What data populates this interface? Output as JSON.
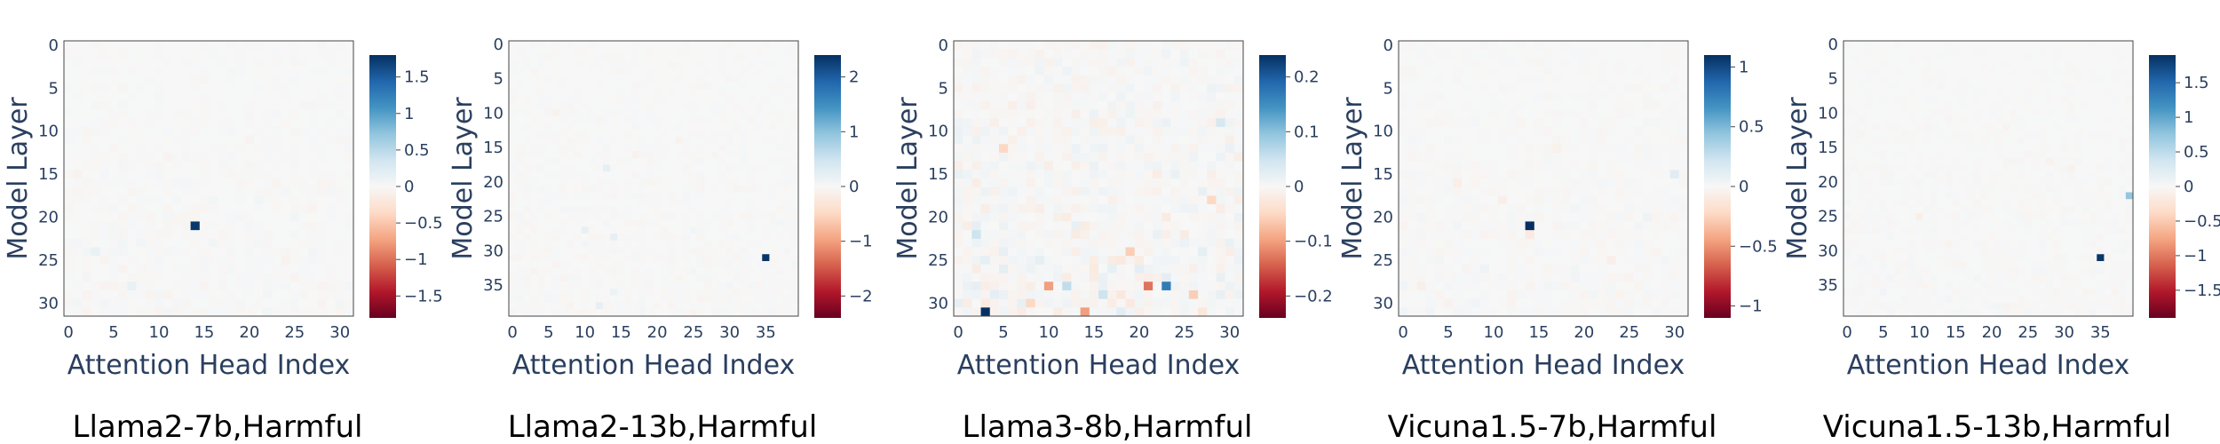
{
  "colorscale": [
    "#67001f",
    "#b2182b",
    "#d6604d",
    "#f4a582",
    "#fddbc7",
    "#f7f7f7",
    "#d1e5f0",
    "#92c5de",
    "#4393c3",
    "#2166ac",
    "#053061"
  ],
  "chart_data": [
    {
      "type": "heatmap",
      "caption": "Llama2-7b,Harmful",
      "xlabel": "Attention Head Index",
      "ylabel": "Model Layer",
      "n_heads": 32,
      "n_layers": 32,
      "xticks": [
        0,
        5,
        10,
        15,
        20,
        25,
        30
      ],
      "yticks": [
        0,
        5,
        10,
        15,
        20,
        25,
        30
      ],
      "zrange": [
        -1.8,
        1.8
      ],
      "cbar_ticks": [
        -1.5,
        -1,
        -0.5,
        0,
        0.5,
        1,
        1.5
      ],
      "cbar_tick_labels": [
        "−1.5",
        "−1",
        "−0.5",
        "0",
        "0.5",
        "1",
        "1.5"
      ],
      "cells": [
        [
          14,
          21,
          1.75
        ],
        [
          3,
          24,
          0.12
        ],
        [
          7,
          28,
          0.12
        ],
        [
          11,
          13,
          -0.05
        ],
        [
          20,
          11,
          -0.05
        ],
        [
          1,
          15,
          -0.06
        ],
        [
          23,
          16,
          -0.05
        ],
        [
          27,
          19,
          -0.05
        ],
        [
          9,
          29,
          -0.05
        ],
        [
          24,
          25,
          -0.06
        ],
        [
          2,
          31,
          -0.05
        ],
        [
          16,
          18,
          0.05
        ],
        [
          6,
          7,
          0.04
        ]
      ],
      "noise_amp": 0.06,
      "seed": 11
    },
    {
      "type": "heatmap",
      "caption": "Llama2-13b,Harmful",
      "xlabel": "Attention Head Index",
      "ylabel": "Model Layer",
      "n_heads": 40,
      "n_layers": 40,
      "xticks": [
        0,
        5,
        10,
        15,
        20,
        25,
        30,
        35
      ],
      "yticks": [
        0,
        5,
        10,
        15,
        20,
        25,
        30,
        35
      ],
      "zrange": [
        -2.4,
        2.4
      ],
      "cbar_ticks": [
        -2,
        -1,
        0,
        1,
        2
      ],
      "cbar_tick_labels": [
        "−2",
        "−1",
        "0",
        "1",
        "2"
      ],
      "cells": [
        [
          35,
          31,
          2.35
        ],
        [
          13,
          18,
          0.22
        ],
        [
          10,
          27,
          0.18
        ],
        [
          14,
          28,
          0.2
        ],
        [
          12,
          38,
          0.2
        ],
        [
          14,
          36,
          0.14
        ],
        [
          17,
          16,
          -0.1
        ],
        [
          6,
          10,
          -0.08
        ],
        [
          23,
          14,
          -0.08
        ],
        [
          31,
          21,
          -0.07
        ],
        [
          3,
          33,
          -0.07
        ],
        [
          25,
          27,
          0.06
        ]
      ],
      "noise_amp": 0.07,
      "seed": 23
    },
    {
      "type": "heatmap",
      "caption": "Llama3-8b,Harmful",
      "xlabel": "Attention Head Index",
      "ylabel": "Model Layer",
      "n_heads": 32,
      "n_layers": 32,
      "xticks": [
        0,
        5,
        10,
        15,
        20,
        25,
        30
      ],
      "yticks": [
        0,
        5,
        10,
        15,
        20,
        25,
        30
      ],
      "zrange": [
        -0.24,
        0.24
      ],
      "cbar_ticks": [
        -0.2,
        -0.1,
        0,
        0.1,
        0.2
      ],
      "cbar_tick_labels": [
        "−0.2",
        "−0.1",
        "0",
        "0.1",
        "0.2"
      ],
      "cells": [
        [
          3,
          31,
          0.24
        ],
        [
          23,
          28,
          0.17
        ],
        [
          21,
          28,
          -0.13
        ],
        [
          10,
          28,
          -0.1
        ],
        [
          14,
          31,
          -0.1
        ],
        [
          16,
          29,
          0.05
        ],
        [
          12,
          28,
          0.06
        ],
        [
          26,
          29,
          -0.06
        ],
        [
          8,
          30,
          -0.05
        ],
        [
          19,
          24,
          -0.06
        ],
        [
          5,
          12,
          -0.05
        ],
        [
          28,
          18,
          -0.05
        ],
        [
          2,
          22,
          0.05
        ],
        [
          29,
          9,
          0.04
        ]
      ],
      "noise_amp": 0.028,
      "seed": 37
    },
    {
      "type": "heatmap",
      "caption": "Vicuna1.5-7b,Harmful",
      "xlabel": "Attention Head Index",
      "ylabel": "Model Layer",
      "n_heads": 32,
      "n_layers": 32,
      "xticks": [
        0,
        5,
        10,
        15,
        20,
        25,
        30
      ],
      "yticks": [
        0,
        5,
        10,
        15,
        20,
        25,
        30
      ],
      "zrange": [
        -1.1,
        1.1
      ],
      "cbar_ticks": [
        -1,
        -0.5,
        0,
        0.5,
        1
      ],
      "cbar_tick_labels": [
        "−1",
        "−0.5",
        "0",
        "0.5",
        "1"
      ],
      "cells": [
        [
          14,
          21,
          1.1
        ],
        [
          30,
          15,
          0.12
        ],
        [
          14,
          22,
          -0.1
        ],
        [
          6,
          16,
          -0.07
        ],
        [
          11,
          18,
          -0.06
        ],
        [
          23,
          25,
          -0.06
        ],
        [
          2,
          28,
          -0.06
        ],
        [
          17,
          12,
          -0.05
        ],
        [
          27,
          20,
          0.05
        ],
        [
          9,
          26,
          0.05
        ]
      ],
      "noise_amp": 0.04,
      "seed": 59
    },
    {
      "type": "heatmap",
      "caption": "Vicuna1.5-13b,Harmful",
      "xlabel": "Attention Head Index",
      "ylabel": "Model Layer",
      "n_heads": 40,
      "n_layers": 40,
      "xticks": [
        0,
        5,
        10,
        15,
        20,
        25,
        30,
        35
      ],
      "yticks": [
        0,
        5,
        10,
        15,
        20,
        25,
        30,
        35
      ],
      "zrange": [
        -1.9,
        1.9
      ],
      "cbar_ticks": [
        -1.5,
        -1,
        -0.5,
        0,
        0.5,
        1,
        1.5
      ],
      "cbar_tick_labels": [
        "−1.5",
        "−1",
        "−0.5",
        "0",
        "0.5",
        "1",
        "1.5"
      ],
      "cells": [
        [
          35,
          31,
          1.85
        ],
        [
          39,
          22,
          0.75
        ],
        [
          10,
          25,
          -0.12
        ],
        [
          28,
          17,
          -0.08
        ],
        [
          31,
          18,
          -0.07
        ],
        [
          5,
          36,
          0.06
        ],
        [
          14,
          29,
          -0.06
        ],
        [
          22,
          12,
          -0.05
        ],
        [
          18,
          34,
          0.05
        ],
        [
          37,
          36,
          -0.06
        ]
      ],
      "noise_amp": 0.05,
      "seed": 71
    }
  ]
}
